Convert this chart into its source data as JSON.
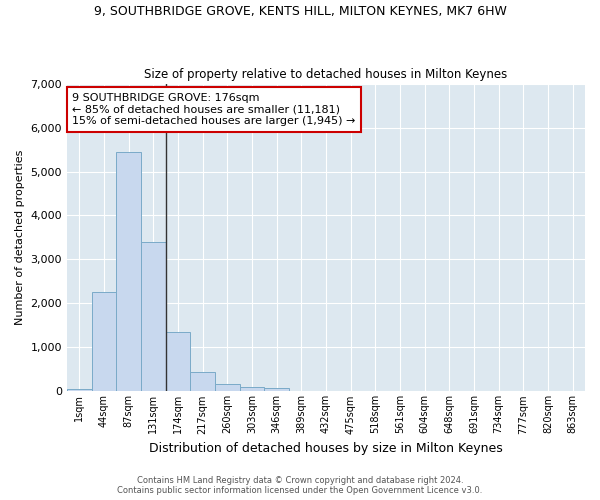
{
  "title1": "9, SOUTHBRIDGE GROVE, KENTS HILL, MILTON KEYNES, MK7 6HW",
  "title2": "Size of property relative to detached houses in Milton Keynes",
  "xlabel": "Distribution of detached houses by size in Milton Keynes",
  "ylabel": "Number of detached properties",
  "bar_color": "#c8d8ee",
  "bar_edge_color": "#7aaac8",
  "background_color": "#dde8f0",
  "grid_color": "#ffffff",
  "fig_background": "#ffffff",
  "categories": [
    "1sqm",
    "44sqm",
    "87sqm",
    "131sqm",
    "174sqm",
    "217sqm",
    "260sqm",
    "303sqm",
    "346sqm",
    "389sqm",
    "432sqm",
    "475sqm",
    "518sqm",
    "561sqm",
    "604sqm",
    "648sqm",
    "691sqm",
    "734sqm",
    "777sqm",
    "820sqm",
    "863sqm"
  ],
  "values": [
    55,
    2250,
    5450,
    3400,
    1350,
    450,
    175,
    100,
    75,
    0,
    0,
    0,
    0,
    0,
    0,
    0,
    0,
    0,
    0,
    0,
    0
  ],
  "ylim": [
    0,
    7000
  ],
  "yticks": [
    0,
    1000,
    2000,
    3000,
    4000,
    5000,
    6000,
    7000
  ],
  "vline_x_index": 3.5,
  "annotation_text": "9 SOUTHBRIDGE GROVE: 176sqm\n← 85% of detached houses are smaller (11,181)\n15% of semi-detached houses are larger (1,945) →",
  "annotation_box_color": "#ffffff",
  "annotation_box_edge": "#cc0000",
  "footer1": "Contains HM Land Registry data © Crown copyright and database right 2024.",
  "footer2": "Contains public sector information licensed under the Open Government Licence v3.0."
}
